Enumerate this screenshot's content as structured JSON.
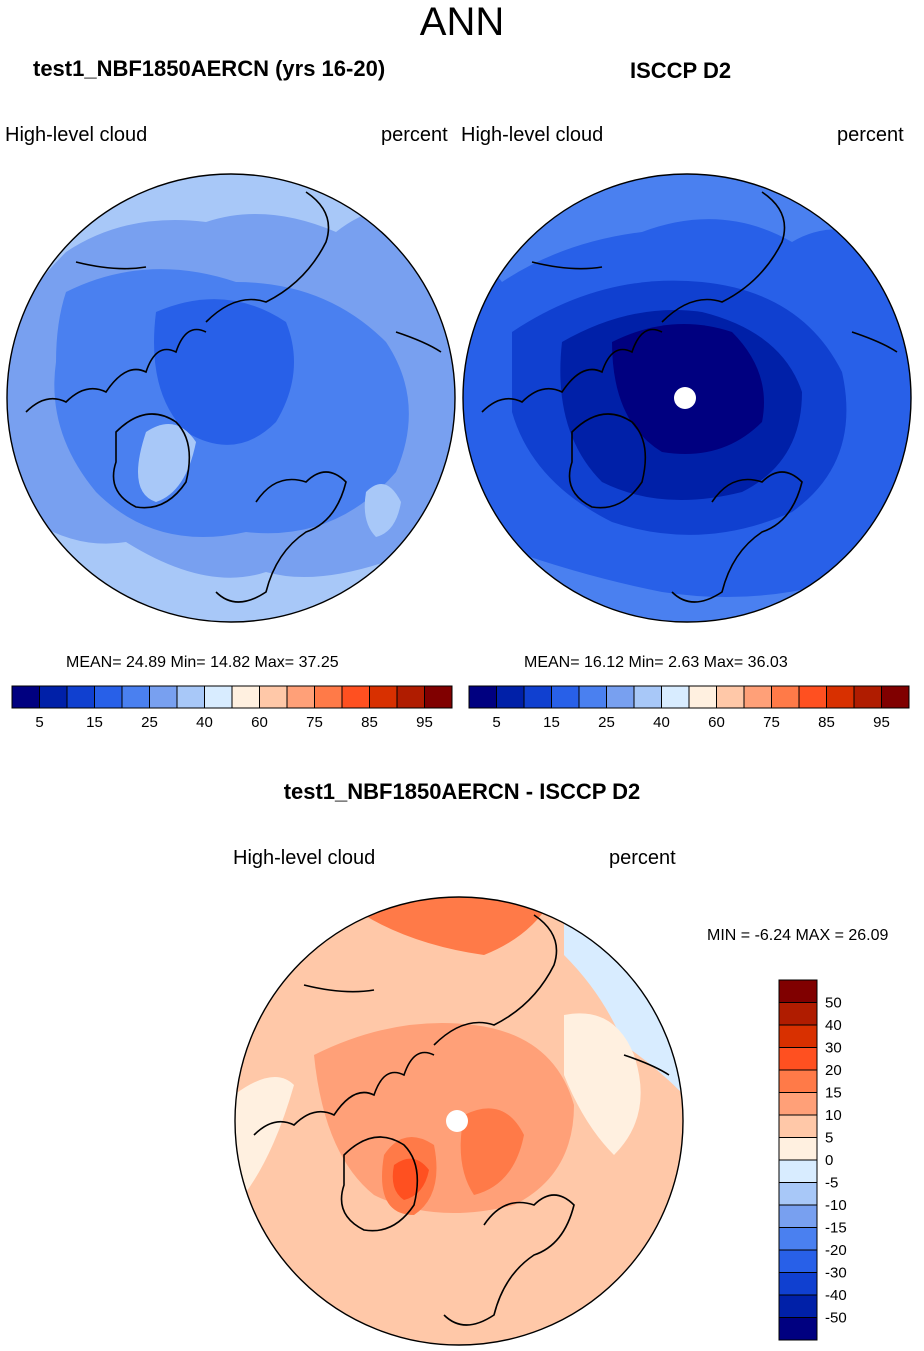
{
  "main_title": "ANN",
  "colors": {
    "abs_levels": [
      "#000080",
      "#0020a8",
      "#1040d0",
      "#2860e8",
      "#4a80f0",
      "#78a0f0",
      "#a8c8f8",
      "#d8ecff",
      "#fff0e0",
      "#ffc8a8",
      "#ffa078",
      "#ff7a48",
      "#ff5020",
      "#d83000",
      "#b01c00",
      "#800000"
    ],
    "diff_levels": [
      "#800000",
      "#b01c00",
      "#d83000",
      "#ff5020",
      "#ff7a48",
      "#ffa078",
      "#ffc8a8",
      "#fff0e0",
      "#d8ecff",
      "#a8c8f8",
      "#78a0f0",
      "#4a80f0",
      "#2860e8",
      "#1040d0",
      "#0020a8",
      "#000080"
    ],
    "coast": "#000000"
  },
  "panels": {
    "model": {
      "title": "test1_NBF1850AERCN (yrs 16-20)",
      "left_label": "High-level cloud",
      "right_label": "percent",
      "stats": "MEAN=  24.89  Min=  14.82  Max=  37.25",
      "colorbar_labels": [
        "5",
        "15",
        "25",
        "40",
        "60",
        "75",
        "85",
        "95"
      ]
    },
    "obs": {
      "title": "ISCCP D2",
      "left_label": "High-level cloud",
      "right_label": "percent",
      "stats": "MEAN=  16.12  Min=   2.63  Max=  36.03",
      "colorbar_labels": [
        "5",
        "15",
        "25",
        "40",
        "60",
        "75",
        "85",
        "95"
      ]
    },
    "diff": {
      "title": "test1_NBF1850AERCN - ISCCP D2",
      "left_label": "High-level cloud",
      "right_label": "percent",
      "stats": "MIN =  -6.24 MAX =  26.09",
      "colorbar_labels": [
        "50",
        "40",
        "30",
        "20",
        "15",
        "10",
        "5",
        "0",
        "-5",
        "-10",
        "-15",
        "-20",
        "-30",
        "-40",
        "-50"
      ]
    }
  }
}
